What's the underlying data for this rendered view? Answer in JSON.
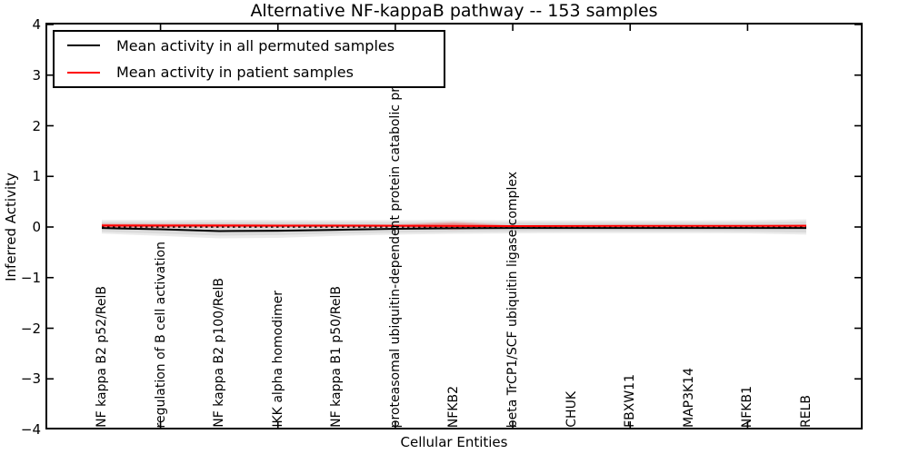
{
  "figure": {
    "title": "Alternative NF-kappaB pathway -- 153 samples",
    "xlabel": "Cellular Entities",
    "ylabel": "Inferred Activity"
  },
  "legend": {
    "position": "upper left",
    "items": [
      {
        "label": "Mean activity in all permuted samples",
        "color": "#000000"
      },
      {
        "label": "Mean activity in patient samples",
        "color": "#ff0000"
      }
    ]
  },
  "chart_data": {
    "type": "line",
    "title": "Alternative NF-kappaB pathway -- 153 samples",
    "xlabel": "Cellular Entities",
    "ylabel": "Inferred Activity",
    "ylim": [
      -4,
      4
    ],
    "grid": false,
    "legend_position": "upper left",
    "ytick_values": [
      4,
      3,
      2,
      1,
      0,
      -1,
      -2,
      -3,
      -4
    ],
    "ytick_labels": [
      "4",
      "3",
      "2",
      "1",
      "0",
      "−1",
      "−2",
      "−3",
      "−4"
    ],
    "categories": [
      "NF kappa B2 p52/RelB",
      "regulation of B cell activation",
      "NF kappa B2 p100/RelB",
      "IKK alpha homodimer",
      "NF kappa B1 p50/RelB",
      "proteasomal ubiquitin-dependent protein catabolic pr",
      "NFKB2",
      "beta TrCP1/SCF ubiquitin ligase complex",
      "CHUK",
      "FBXW11",
      "MAP3K14",
      "NFKB1",
      "RELB"
    ],
    "series": [
      {
        "name": "Mean activity in all permuted samples",
        "color": "#000000",
        "line_style": "solid",
        "values": [
          -0.02,
          -0.045,
          -0.08,
          -0.075,
          -0.055,
          -0.035,
          -0.025,
          -0.02,
          -0.02,
          -0.02,
          -0.02,
          -0.02,
          -0.02
        ]
      },
      {
        "name": "Mean activity in patient samples",
        "color": "#ff0000",
        "line_style": "solid",
        "values": [
          0.03,
          0.03,
          0.03,
          0.028,
          0.027,
          0.025,
          0.02,
          0.018,
          0.02,
          0.022,
          0.022,
          0.022,
          0.025
        ]
      }
    ],
    "reference_line": {
      "y": 0,
      "color": "#000000",
      "line_style": "dotted"
    },
    "bands": [
      {
        "name": "permuted-std-outer",
        "color": "rgba(0,0,0,0.08)",
        "upper": [
          0.14,
          0.14,
          0.145,
          0.14,
          0.135,
          0.135,
          0.14,
          0.13,
          0.13,
          0.13,
          0.13,
          0.135,
          0.15
        ],
        "lower": [
          -0.13,
          -0.175,
          -0.225,
          -0.215,
          -0.175,
          -0.15,
          -0.135,
          -0.125,
          -0.12,
          -0.12,
          -0.12,
          -0.125,
          -0.15
        ]
      },
      {
        "name": "permuted-std-inner",
        "color": "rgba(0,0,0,0.07)",
        "upper": [
          0.1,
          0.1,
          0.1,
          0.1,
          0.095,
          0.095,
          0.1,
          0.09,
          0.09,
          0.09,
          0.09,
          0.095,
          0.11
        ],
        "lower": [
          -0.095,
          -0.13,
          -0.17,
          -0.16,
          -0.13,
          -0.11,
          -0.1,
          -0.09,
          -0.085,
          -0.085,
          -0.085,
          -0.09,
          -0.11
        ]
      },
      {
        "name": "patient-std-outer",
        "color": "rgba(255,0,0,0.13)",
        "upper": [
          0.075,
          0.07,
          0.065,
          0.06,
          0.055,
          0.05,
          0.11,
          0.035,
          0.03,
          0.03,
          0.03,
          0.032,
          0.05
        ],
        "lower": [
          -0.025,
          -0.02,
          -0.015,
          -0.01,
          -0.01,
          -0.005,
          -0.06,
          -0.002,
          0.003,
          0.005,
          0.005,
          0.003,
          -0.01
        ]
      },
      {
        "name": "patient-std-inner",
        "color": "rgba(255,0,0,0.25)",
        "upper": [
          0.055,
          0.05,
          0.05,
          0.045,
          0.042,
          0.04,
          0.075,
          0.028,
          0.026,
          0.026,
          0.026,
          0.027,
          0.04
        ],
        "lower": [
          -0.005,
          -0.002,
          0.0,
          0.003,
          0.004,
          0.006,
          -0.03,
          0.006,
          0.009,
          0.01,
          0.01,
          0.009,
          0.002
        ]
      }
    ]
  }
}
